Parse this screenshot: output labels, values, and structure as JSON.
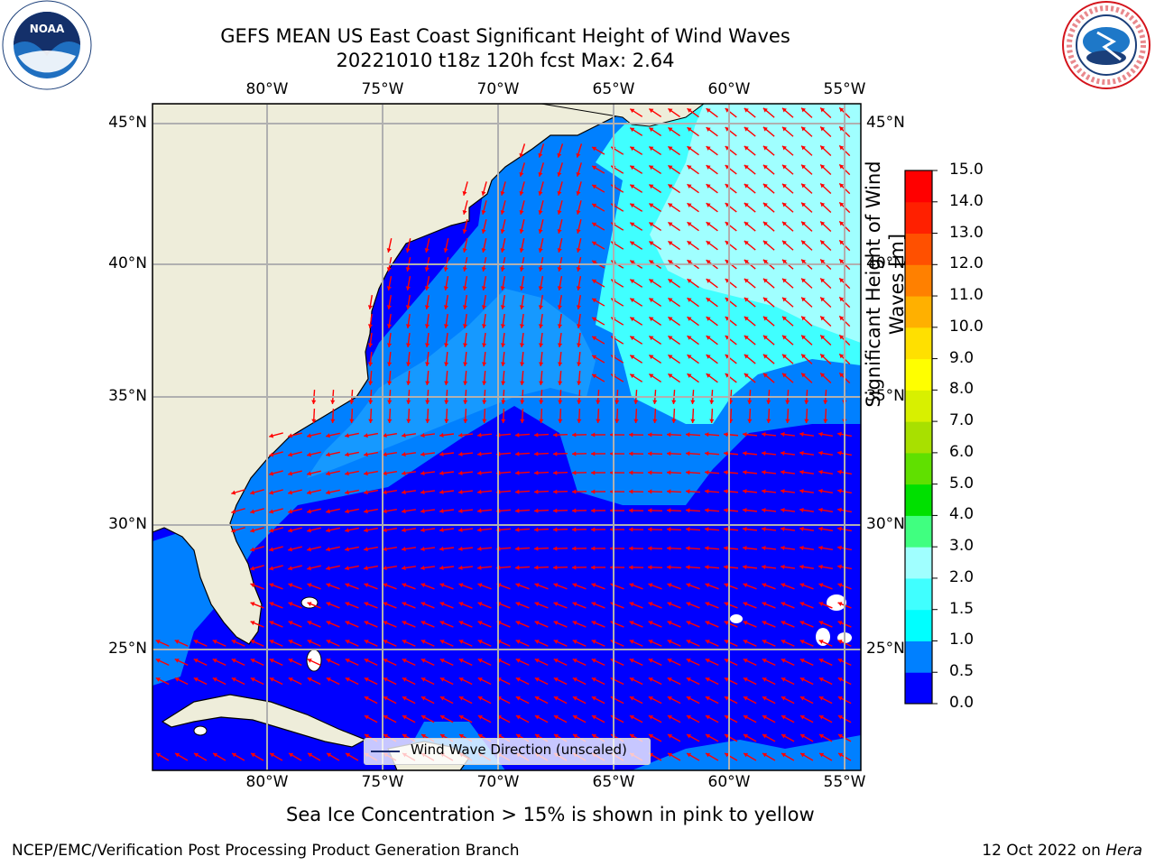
{
  "header": {
    "title_line1": "GEFS MEAN US East Coast Significant Height of Wind Waves",
    "title_line2": "20221010 t18z 120h fcst   Max: 2.64"
  },
  "logos": {
    "left": "NOAA",
    "right_text": "NATIONAL WEATHER SERVICE"
  },
  "map": {
    "lon_ticks": [
      "80°W",
      "75°W",
      "70°W",
      "65°W",
      "60°W",
      "55°W"
    ],
    "lat_ticks_left": [
      "45°N",
      "40°N",
      "35°N",
      "30°N",
      "25°N"
    ],
    "lat_ticks_right": [
      "45°N",
      "40°N",
      "35°N",
      "30°N",
      "25°N"
    ],
    "ocean_color": "#0000ff",
    "land_color": "#eeedda",
    "arrow_color": "#ff0000",
    "legend_label": "Wind Wave Direction (unscaled)"
  },
  "colorbar": {
    "ticks": [
      "15.0",
      "14.0",
      "13.0",
      "12.0",
      "11.0",
      "10.0",
      "9.0",
      "8.0",
      "7.0",
      "6.0",
      "5.0",
      "4.0",
      "3.0",
      "2.0",
      "1.5",
      "1.0",
      "0.5",
      "0.0"
    ],
    "colors": [
      "#0000ff",
      "#0080ff",
      "#00ffff",
      "#40ffff",
      "#a0ffff",
      "#40ff80",
      "#00e000",
      "#60e000",
      "#a8e000",
      "#d8f000",
      "#ffff00",
      "#ffe000",
      "#ffb000",
      "#ff8000",
      "#ff5000",
      "#ff2000",
      "#ff0000"
    ],
    "label_line1": "Significant Height of Wind",
    "label_line2": "Waves [m]"
  },
  "caption": "Sea Ice Concentration > 15% is shown in pink to yellow",
  "footer": {
    "left": "NCEP/EMC/Verification Post Processing Product Generation Branch",
    "right_date": "12 Oct 2022 on ",
    "right_machine": "Hera"
  }
}
